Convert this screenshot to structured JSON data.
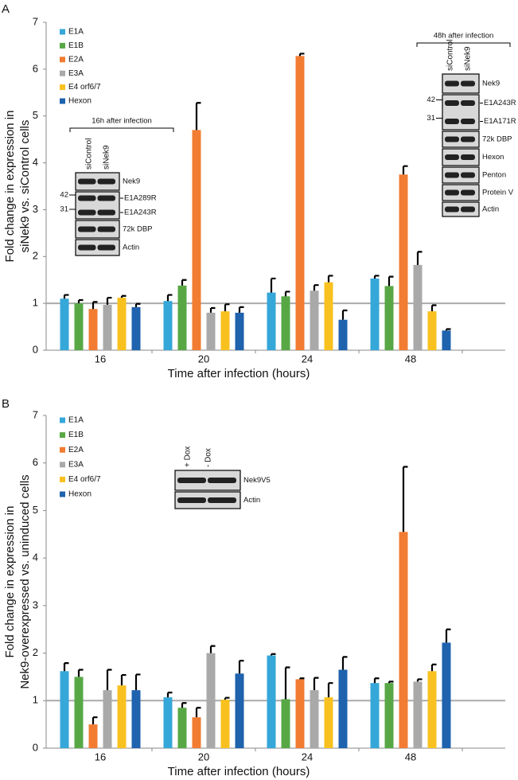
{
  "chart_data": [
    {
      "type": "bar",
      "panel": "A",
      "ylabel": [
        "Fold change in expression in",
        "siNek9 vs. siControl cells"
      ],
      "xlabel": "Time after infection (hours)",
      "categories": [
        "16",
        "20",
        "24",
        "48"
      ],
      "ylim": [
        0,
        7
      ],
      "yticks": [
        0,
        1,
        2,
        3,
        4,
        5,
        6,
        7
      ],
      "reference_line": 1,
      "legend": "upper left",
      "series": [
        {
          "name": "E1A",
          "color": "#35a7d9",
          "values": [
            1.1,
            1.05,
            1.23,
            1.53
          ],
          "errors": [
            0.08,
            0.13,
            0.3,
            0.06
          ]
        },
        {
          "name": "E1B",
          "color": "#57a845",
          "values": [
            1.0,
            1.38,
            1.15,
            1.37
          ],
          "errors": [
            0.07,
            0.12,
            0.1,
            0.2
          ]
        },
        {
          "name": "E2A",
          "color": "#f27c32",
          "values": [
            0.88,
            4.7,
            6.28,
            3.75
          ],
          "errors": [
            0.15,
            0.58,
            0.05,
            0.18
          ]
        },
        {
          "name": "E3A",
          "color": "#a9a9a9",
          "values": [
            0.97,
            0.8,
            1.27,
            1.82
          ],
          "errors": [
            0.15,
            0.1,
            0.12,
            0.28
          ]
        },
        {
          "name": "E4 orf6/7",
          "color": "#f9c11f",
          "values": [
            1.12,
            0.83,
            1.45,
            0.83
          ],
          "errors": [
            0.04,
            0.15,
            0.14,
            0.13
          ]
        },
        {
          "name": "Hexon",
          "color": "#1f62ae",
          "values": [
            0.92,
            0.8,
            0.65,
            0.42
          ],
          "errors": [
            0.07,
            0.12,
            0.2,
            0.03
          ]
        }
      ],
      "insets": [
        {
          "title": "16h after infection",
          "lanes": [
            "siControl",
            "siNek9"
          ],
          "rows": [
            {
              "labels": [
                "Nek9"
              ],
              "markers": []
            },
            {
              "labels": [
                "E1A289R",
                "E1A243R"
              ],
              "markers": [
                42,
                31
              ]
            },
            {
              "labels": [
                "72k DBP"
              ],
              "markers": []
            },
            {
              "labels": [
                "Actin"
              ],
              "markers": []
            }
          ]
        },
        {
          "title": "48h after infection",
          "lanes": [
            "siControl",
            "siNek9"
          ],
          "rows": [
            {
              "labels": [
                "Nek9"
              ],
              "markers": []
            },
            {
              "labels": [
                "E1A243R",
                "E1A171R"
              ],
              "markers": [
                42,
                31
              ]
            },
            {
              "labels": [
                "72k DBP"
              ],
              "markers": []
            },
            {
              "labels": [
                "Hexon"
              ],
              "markers": []
            },
            {
              "labels": [
                "Penton"
              ],
              "markers": []
            },
            {
              "labels": [
                "Protein V"
              ],
              "markers": []
            },
            {
              "labels": [
                "Actin"
              ],
              "markers": []
            }
          ]
        }
      ]
    },
    {
      "type": "bar",
      "panel": "B",
      "ylabel": [
        "Fold change in expression in",
        "Nek9-overexpressed vs. uninduced cells"
      ],
      "xlabel": "Time after infection (hours)",
      "categories": [
        "16",
        "20",
        "24",
        "48"
      ],
      "ylim": [
        0,
        7
      ],
      "yticks": [
        0,
        1,
        2,
        3,
        4,
        5,
        6,
        7
      ],
      "reference_line": 1,
      "legend": "upper left",
      "series": [
        {
          "name": "E1A",
          "color": "#35a7d9",
          "values": [
            1.62,
            1.07,
            1.95,
            1.37
          ],
          "errors": [
            0.17,
            0.1,
            0.03,
            0.1
          ]
        },
        {
          "name": "E1B",
          "color": "#57a845",
          "values": [
            1.5,
            0.85,
            1.03,
            1.37
          ],
          "errors": [
            0.15,
            0.1,
            0.67,
            0.03
          ]
        },
        {
          "name": "E2A",
          "color": "#f27c32",
          "values": [
            0.5,
            0.65,
            1.45,
            4.55
          ],
          "errors": [
            0.15,
            0.2,
            0.02,
            1.37
          ]
        },
        {
          "name": "E3A",
          "color": "#a9a9a9",
          "values": [
            1.22,
            2.0,
            1.22,
            1.4
          ],
          "errors": [
            0.43,
            0.15,
            0.26,
            0.05
          ]
        },
        {
          "name": "E4 orf6/7",
          "color": "#f9c11f",
          "values": [
            1.32,
            1.02,
            1.07,
            1.62
          ],
          "errors": [
            0.22,
            0.04,
            0.3,
            0.14
          ]
        },
        {
          "name": "Hexon",
          "color": "#1f62ae",
          "values": [
            1.22,
            1.57,
            1.65,
            2.22
          ],
          "errors": [
            0.33,
            0.27,
            0.27,
            0.28
          ]
        }
      ],
      "insets": [
        {
          "lanes": [
            "+ Dox",
            "- Dox"
          ],
          "rows": [
            {
              "labels": [
                "Nek9V5"
              ],
              "markers": []
            },
            {
              "labels": [
                "Actin"
              ],
              "markers": []
            }
          ]
        }
      ]
    }
  ]
}
